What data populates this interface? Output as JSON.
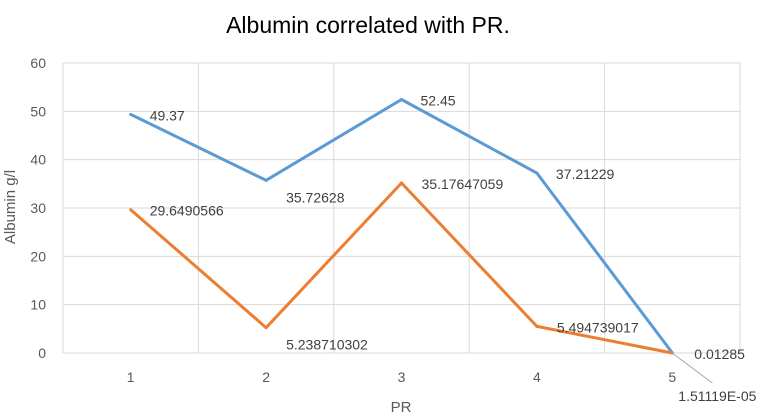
{
  "chart_data": {
    "type": "line",
    "title": "Albumin correlated with PR.",
    "xlabel": "PR",
    "ylabel": "Albumin g/l",
    "categories": [
      "1",
      "2",
      "3",
      "4",
      "5"
    ],
    "ylim": [
      0,
      60
    ],
    "yticks": [
      0,
      10,
      20,
      30,
      40,
      50,
      60
    ],
    "grid": true,
    "legend": "none",
    "series": [
      {
        "color": "#5b9bd5",
        "values": [
          49.37,
          35.72628,
          52.45,
          37.21229,
          0.01285
        ],
        "labels": [
          "49.37",
          "35.72628",
          "52.45",
          "37.21229",
          "0.01285"
        ]
      },
      {
        "color": "#ed7d31",
        "values": [
          29.6490566,
          5.238710302,
          35.17647059,
          5.494739017,
          1.51119e-05
        ],
        "labels": [
          "29.6490566",
          "5.238710302",
          "35.17647059",
          "5.494739017",
          "1.51119E-05"
        ]
      }
    ]
  }
}
